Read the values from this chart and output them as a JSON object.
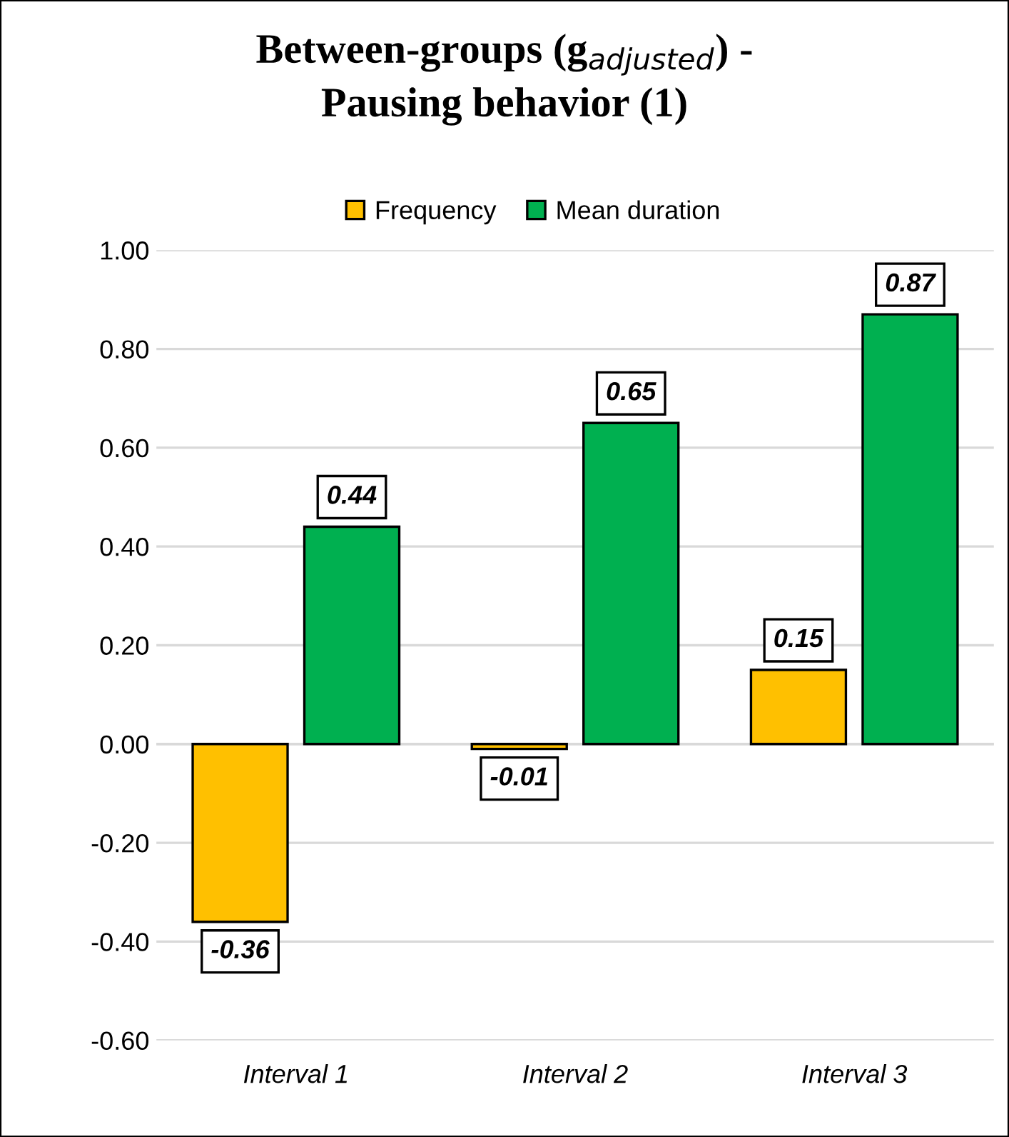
{
  "chart_data": {
    "type": "bar",
    "title": "Between-groups (g$_{adjusted}$) -\nPausing behavior (1)",
    "categories": [
      "Interval 1",
      "Interval 2",
      "Interval 3"
    ],
    "series": [
      {
        "name": "Frequency",
        "color": "#ffc000",
        "values": [
          -0.36,
          -0.01,
          0.15
        ],
        "value_labels": [
          "-0.36",
          "-0.01",
          "0.15"
        ]
      },
      {
        "name": "Mean duration",
        "color": "#00b050",
        "values": [
          0.44,
          0.65,
          0.87
        ],
        "value_labels": [
          "0.44",
          "0.65",
          "0.87"
        ]
      }
    ],
    "ylim": [
      -0.6,
      1.0
    ],
    "yticks": [
      {
        "value": -0.6,
        "label": "-0.60"
      },
      {
        "value": -0.4,
        "label": "-0.40"
      },
      {
        "value": -0.2,
        "label": "-0.20"
      },
      {
        "value": 0.0,
        "label": "0.00"
      },
      {
        "value": 0.2,
        "label": "0.20"
      },
      {
        "value": 0.4,
        "label": "0.40"
      },
      {
        "value": 0.6,
        "label": "0.60"
      },
      {
        "value": 0.8,
        "label": "0.80"
      },
      {
        "value": 1.0,
        "label": "1.00"
      }
    ],
    "grid": "y",
    "legend": "top"
  }
}
